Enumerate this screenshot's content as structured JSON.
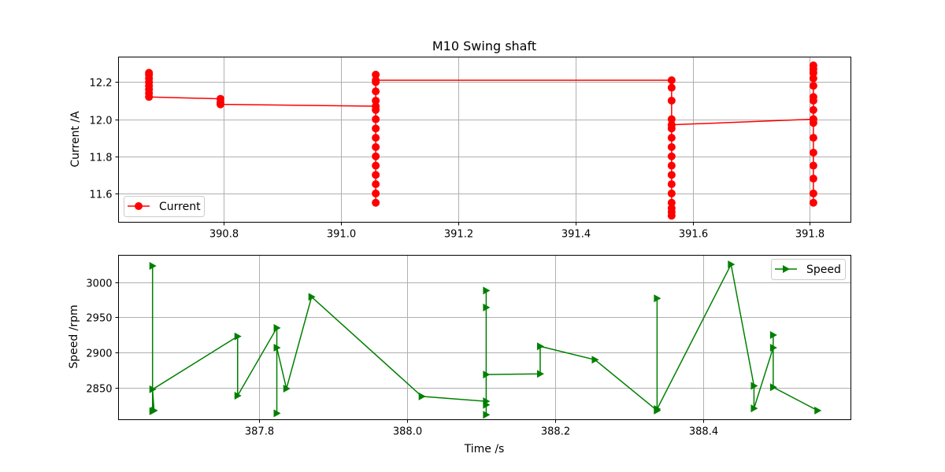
{
  "chart_data": [
    {
      "type": "line",
      "title": "M10 Swing shaft",
      "xlabel": "",
      "ylabel": "Current /A",
      "xlim": [
        390.62,
        391.87
      ],
      "ylim": [
        11.445,
        12.335
      ],
      "xticks": [
        390.8,
        391.0,
        391.2,
        391.4,
        391.6,
        391.8
      ],
      "xtick_labels": [
        "390.8",
        "391.0",
        "391.2",
        "391.4",
        "391.6",
        "391.8"
      ],
      "yticks": [
        11.6,
        11.8,
        12.0,
        12.2
      ],
      "ytick_labels": [
        "11.6",
        "11.8",
        "12.0",
        "12.2"
      ],
      "grid": true,
      "legend_position": "lower-left",
      "series": [
        {
          "name": "Current",
          "color": "#ff0000",
          "marker": "circle",
          "x": [
            390.672,
            390.672,
            390.672,
            390.672,
            390.672,
            390.672,
            390.672,
            390.672,
            390.794,
            390.794,
            390.794,
            391.059,
            391.059,
            391.059,
            391.059,
            391.059,
            391.059,
            391.059,
            391.059,
            391.059,
            391.059,
            391.059,
            391.059,
            391.059,
            391.059,
            391.059,
            391.059,
            391.059,
            391.564,
            391.564,
            391.564,
            391.564,
            391.564,
            391.564,
            391.564,
            391.564,
            391.564,
            391.564,
            391.564,
            391.564,
            391.564,
            391.564,
            391.564,
            391.564,
            391.564,
            391.806,
            391.806,
            391.806,
            391.806,
            391.806,
            391.806,
            391.806,
            391.806,
            391.806,
            391.806,
            391.806,
            391.806,
            391.806,
            391.806,
            391.806,
            391.806,
            391.806
          ],
          "y": [
            12.24,
            12.25,
            12.22,
            12.2,
            12.18,
            12.16,
            12.14,
            12.12,
            12.11,
            12.09,
            12.08,
            12.07,
            11.55,
            11.6,
            11.65,
            11.7,
            11.75,
            11.8,
            11.85,
            11.9,
            11.95,
            12.0,
            12.05,
            12.1,
            12.15,
            12.2,
            12.24,
            12.21,
            12.21,
            12.17,
            12.1,
            12.0,
            11.9,
            11.8,
            11.7,
            11.6,
            11.55,
            11.5,
            11.48,
            11.52,
            11.65,
            11.75,
            11.85,
            11.95,
            11.97,
            12.0,
            11.55,
            11.6,
            11.68,
            11.75,
            11.82,
            11.9,
            11.98,
            12.05,
            12.12,
            12.18,
            12.22,
            12.25,
            12.27,
            12.29,
            12.1,
            12.0
          ]
        }
      ]
    },
    {
      "type": "line",
      "title": "",
      "xlabel": "Time /s",
      "ylabel": "Speed /rpm",
      "xlim": [
        387.61,
        388.6
      ],
      "ylim": [
        2805,
        3038
      ],
      "xticks": [
        387.8,
        388.0,
        388.2,
        388.4
      ],
      "xtick_labels": [
        "387.8",
        "388.0",
        "388.2",
        "388.4"
      ],
      "yticks": [
        2850,
        2900,
        2950,
        3000
      ],
      "ytick_labels": [
        "2850",
        "2900",
        "2950",
        "3000"
      ],
      "grid": true,
      "legend_position": "upper-right",
      "series": [
        {
          "name": "Speed",
          "color": "#008000",
          "marker": "triangle-right",
          "x": [
            387.656,
            387.656,
            387.658,
            387.656,
            387.771,
            387.771,
            387.824,
            387.824,
            387.824,
            387.837,
            387.871,
            388.02,
            388.107,
            388.107,
            388.107,
            388.107,
            388.107,
            388.107,
            388.18,
            388.18,
            388.254,
            388.338,
            388.338,
            388.338,
            388.438,
            388.469,
            388.469,
            388.495,
            388.495,
            388.495,
            388.555
          ],
          "y": [
            3023,
            2817,
            2818,
            2848,
            2923,
            2839,
            2935,
            2814,
            2907,
            2849,
            2979,
            2838,
            2831,
            2812,
            2826,
            2988,
            2964,
            2869,
            2870,
            2909,
            2890,
            2818,
            2977,
            2820,
            3025,
            2853,
            2821,
            2907,
            2925,
            2851,
            2818
          ]
        }
      ]
    }
  ]
}
